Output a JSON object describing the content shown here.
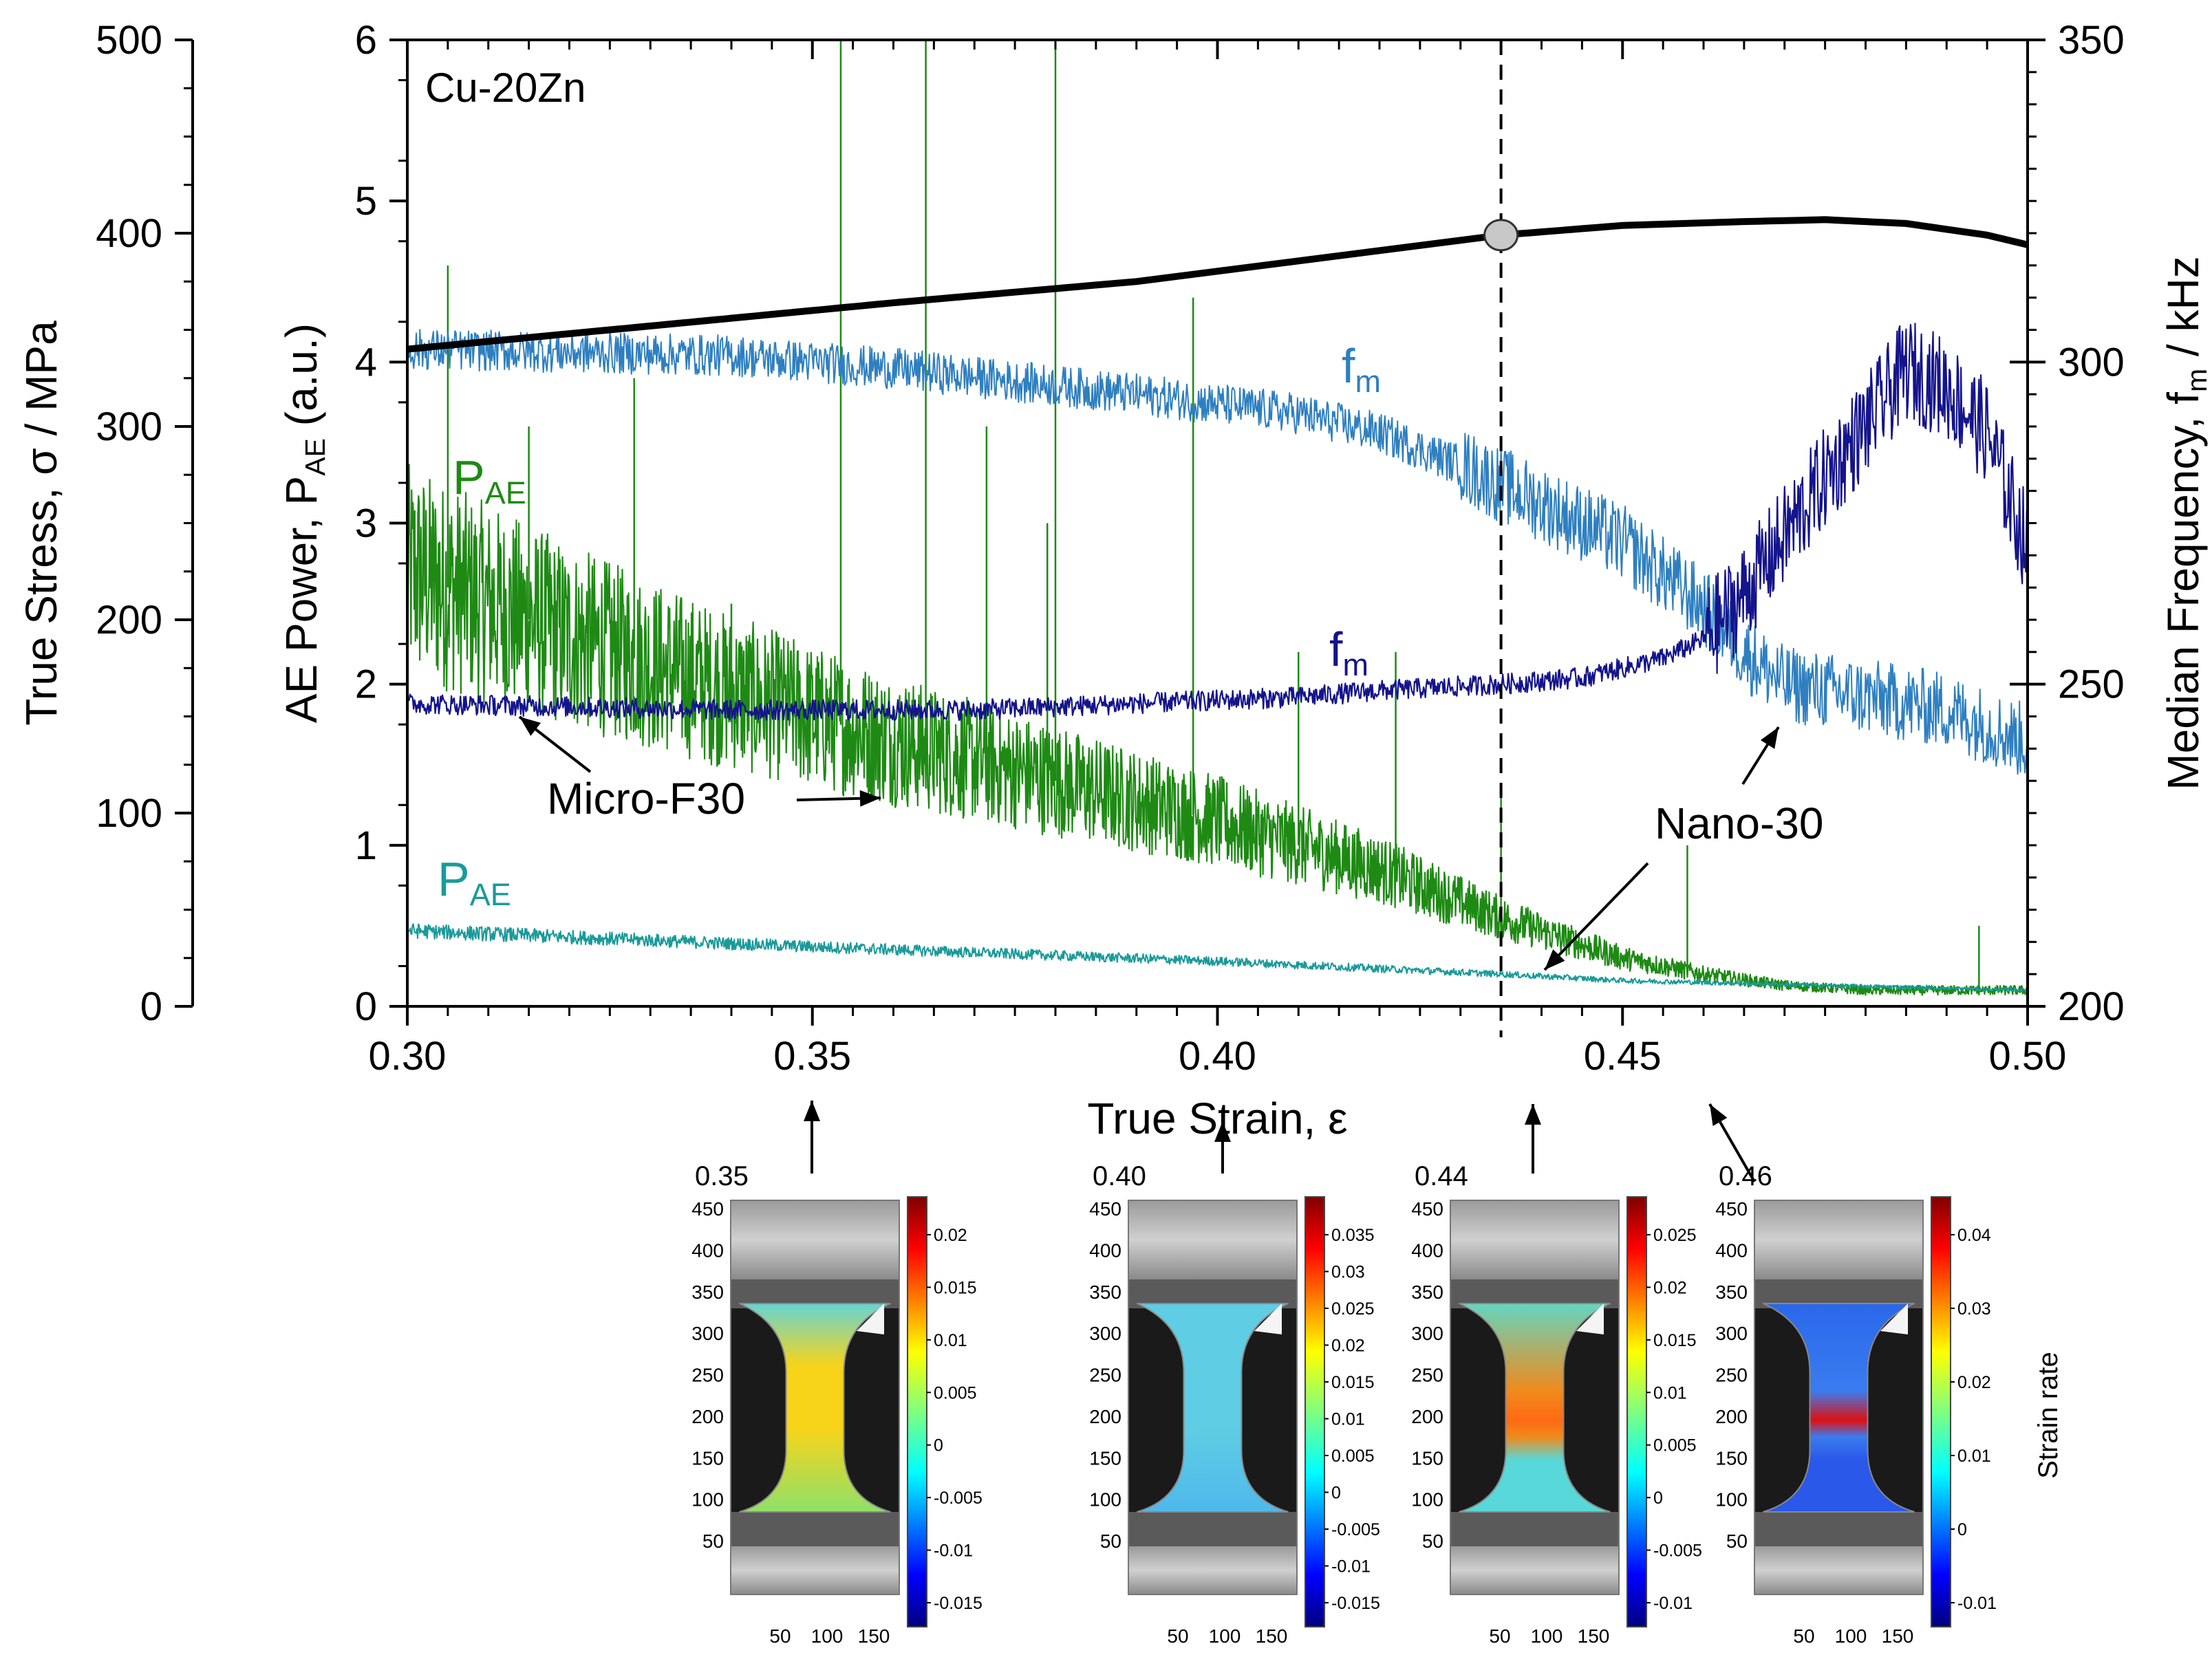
{
  "figure": {
    "sample_label": "Cu-20Zn"
  },
  "colors": {
    "stress": "#000000",
    "pae_micro": "#1e8a14",
    "pae_nano": "#1a9a9a",
    "fm_nano": "#2e7fc0",
    "fm_micro": "#14148c",
    "marker_fill": "#c8c8c8"
  },
  "chart_data": {
    "type": "line",
    "title": "",
    "xlabel": "True Strain, ε",
    "xlim": [
      0.3,
      0.5
    ],
    "xticks": [
      "0.30",
      "0.35",
      "0.40",
      "0.45",
      "0.50"
    ],
    "axes": {
      "stress": {
        "label_main": "True Stress, σ / MPa",
        "ylim": [
          0,
          500
        ],
        "ticks": [
          "0",
          "100",
          "200",
          "300",
          "400",
          "500"
        ]
      },
      "power": {
        "label_main": "AE Power, P",
        "label_sub": "AE",
        "label_tail": " (a.u.)",
        "ylim": [
          0,
          6
        ],
        "ticks": [
          "0",
          "1",
          "2",
          "3",
          "4",
          "5",
          "6"
        ]
      },
      "freq": {
        "label_main": "Median Frequency, f",
        "label_sub": "m",
        "label_tail": " / kHz",
        "ylim": [
          200,
          350
        ],
        "ticks": [
          "200",
          "250",
          "300",
          "350"
        ]
      }
    },
    "series": [
      {
        "name": "True Stress",
        "axis": "stress",
        "color": "#000000",
        "x": [
          0.3,
          0.33,
          0.36,
          0.39,
          0.42,
          0.435,
          0.45,
          0.465,
          0.475,
          0.485,
          0.495,
          0.5
        ],
        "y": [
          340,
          352,
          364,
          375,
          391,
          399,
          404,
          406,
          407,
          405,
          399,
          394
        ]
      },
      {
        "name": "P_AE Micro-F30",
        "axis": "power",
        "color": "#1e8a14",
        "x": [
          0.3,
          0.32,
          0.34,
          0.36,
          0.38,
          0.4,
          0.42,
          0.435,
          0.45,
          0.46,
          0.47,
          0.48,
          0.5
        ],
        "y": [
          2.7,
          2.3,
          1.95,
          1.65,
          1.4,
          1.15,
          0.85,
          0.55,
          0.3,
          0.2,
          0.13,
          0.1,
          0.1
        ]
      },
      {
        "name": "P_AE Nano-30",
        "axis": "power",
        "color": "#1a9a9a",
        "x": [
          0.3,
          0.35,
          0.4,
          0.435,
          0.45,
          0.5
        ],
        "y": [
          0.47,
          0.37,
          0.28,
          0.2,
          0.16,
          0.1
        ]
      },
      {
        "name": "f_m Nano-30",
        "axis": "freq",
        "color": "#2e7fc0",
        "x": [
          0.3,
          0.34,
          0.36,
          0.39,
          0.41,
          0.42,
          0.43,
          0.435,
          0.44,
          0.45,
          0.46,
          0.465,
          0.47,
          0.48,
          0.49,
          0.5
        ],
        "y": [
          302,
          301,
          299,
          295,
          292,
          289,
          284,
          281,
          278,
          272,
          262,
          255,
          250,
          248,
          246,
          241
        ]
      },
      {
        "name": "f_m Micro-F30",
        "axis": "freq",
        "color": "#14148c",
        "x": [
          0.3,
          0.34,
          0.37,
          0.39,
          0.41,
          0.42,
          0.435,
          0.445,
          0.455,
          0.46,
          0.465,
          0.47,
          0.475,
          0.48,
          0.485,
          0.49,
          0.495,
          0.5
        ],
        "y": [
          247,
          246,
          246,
          247,
          248,
          249,
          250,
          251,
          254,
          257,
          264,
          273,
          282,
          290,
          299,
          296,
          289,
          271
        ]
      }
    ],
    "spikes_power": {
      "x": [
        0.305,
        0.315,
        0.328,
        0.34,
        0.3535,
        0.364,
        0.3715,
        0.379,
        0.38,
        0.397,
        0.41,
        0.422,
        0.435,
        0.458,
        0.494
      ],
      "y": [
        4.6,
        3.6,
        3.9,
        2.5,
        6.0,
        6.0,
        3.6,
        3.0,
        6.0,
        4.4,
        2.2,
        2.2,
        1.35,
        1.0,
        0.5
      ]
    },
    "marker": {
      "x": 0.435,
      "stress": 399
    },
    "vline_x": 0.435,
    "annotations": {
      "pae_micro": {
        "main": "P",
        "sub": "AE"
      },
      "pae_nano": {
        "main": "P",
        "sub": "AE"
      },
      "fm_nano": {
        "main": "f",
        "sub": "m"
      },
      "fm_micro": {
        "main": "f",
        "sub": "m"
      },
      "micro_label": "Micro-F30",
      "nano_label": "Nano-30"
    }
  },
  "dic_panels": [
    {
      "strain": "0.35",
      "yticks": [
        "450",
        "400",
        "350",
        "300",
        "250",
        "200",
        "150",
        "100",
        "50"
      ],
      "xticks": [
        "50",
        "100",
        "150"
      ],
      "colorbar_ticks": [
        "0.02",
        "0.015",
        "0.01",
        "0.005",
        "0",
        "-0.005",
        "-0.01",
        "-0.015"
      ],
      "colorbar_label": ""
    },
    {
      "strain": "0.40",
      "yticks": [
        "450",
        "400",
        "350",
        "300",
        "250",
        "200",
        "150",
        "100",
        "50"
      ],
      "xticks": [
        "50",
        "100",
        "150"
      ],
      "colorbar_ticks": [
        "0.035",
        "0.03",
        "0.025",
        "0.02",
        "0.015",
        "0.01",
        "0.005",
        "0",
        "-0.005",
        "-0.01",
        "-0.015"
      ],
      "colorbar_label": ""
    },
    {
      "strain": "0.44",
      "yticks": [
        "450",
        "400",
        "350",
        "300",
        "250",
        "200",
        "150",
        "100",
        "50"
      ],
      "xticks": [
        "50",
        "100",
        "150"
      ],
      "colorbar_ticks": [
        "0.025",
        "0.02",
        "0.015",
        "0.01",
        "0.005",
        "0",
        "-0.005",
        "-0.01"
      ],
      "colorbar_label": ""
    },
    {
      "strain": "0.46",
      "yticks": [
        "450",
        "400",
        "350",
        "300",
        "250",
        "200",
        "150",
        "100",
        "50"
      ],
      "xticks": [
        "50",
        "100",
        "150"
      ],
      "colorbar_ticks": [
        "0.04",
        "0.03",
        "0.02",
        "0.01",
        "0",
        "-0.01"
      ],
      "colorbar_label": "Strain rate"
    }
  ]
}
